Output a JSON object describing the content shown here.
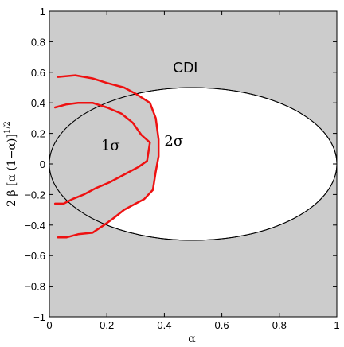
{
  "chart_data": {
    "type": "area",
    "title": "",
    "xlabel": "α",
    "ylabel": "2 β [α (1−α)]",
    "ylabel_superscript": "1/2",
    "xlim": [
      0,
      1
    ],
    "ylim": [
      -1,
      1
    ],
    "xticks": [
      0,
      0.2,
      0.4,
      0.6,
      0.8,
      1
    ],
    "xtick_labels": [
      "0",
      "0.2",
      "0.4",
      "0.6",
      "0.8",
      "1"
    ],
    "yticks": [
      -1,
      -0.8,
      -0.6,
      -0.4,
      -0.2,
      0,
      0.2,
      0.4,
      0.6,
      0.8,
      1
    ],
    "ytick_labels": [
      "−1",
      "−0.8",
      "−0.6",
      "−0.4",
      "−0.2",
      "0",
      "0.2",
      "0.4",
      "0.6",
      "0.8",
      "1"
    ],
    "grid": false,
    "colors": {
      "excluded_fill": "#cccccc",
      "allowed_fill": "#ffffff",
      "contour": "#ee1111"
    },
    "allowed_region": {
      "shape": "circle",
      "center": [
        0.5,
        0
      ],
      "radius": 0.5
    },
    "annotations": [
      {
        "text": "CDI",
        "x": 0.43,
        "y": 0.6
      },
      {
        "text": "1σ",
        "x": 0.18,
        "y": 0.09
      },
      {
        "text": "2σ",
        "x": 0.4,
        "y": 0.12
      }
    ],
    "series": [
      {
        "label": "2σ",
        "x": [
          0.03,
          0.09,
          0.15,
          0.2,
          0.26,
          0.3,
          0.35,
          0.37,
          0.38,
          0.38,
          0.37,
          0.36,
          0.33,
          0.29,
          0.26,
          0.22,
          0.19,
          0.15,
          0.1,
          0.06,
          0.03
        ],
        "y": [
          0.57,
          0.58,
          0.56,
          0.53,
          0.5,
          0.46,
          0.4,
          0.3,
          0.16,
          0.05,
          -0.05,
          -0.17,
          -0.23,
          -0.27,
          -0.3,
          -0.36,
          -0.4,
          -0.45,
          -0.46,
          -0.48,
          -0.48
        ]
      },
      {
        "label": "1σ",
        "x": [
          0.02,
          0.06,
          0.1,
          0.15,
          0.2,
          0.25,
          0.29,
          0.32,
          0.35,
          0.34,
          0.31,
          0.26,
          0.21,
          0.16,
          0.12,
          0.08,
          0.05,
          0.02
        ],
        "y": [
          0.37,
          0.39,
          0.4,
          0.4,
          0.37,
          0.33,
          0.27,
          0.19,
          0.14,
          0.02,
          -0.02,
          -0.07,
          -0.12,
          -0.16,
          -0.2,
          -0.23,
          -0.26,
          -0.26
        ]
      }
    ]
  }
}
